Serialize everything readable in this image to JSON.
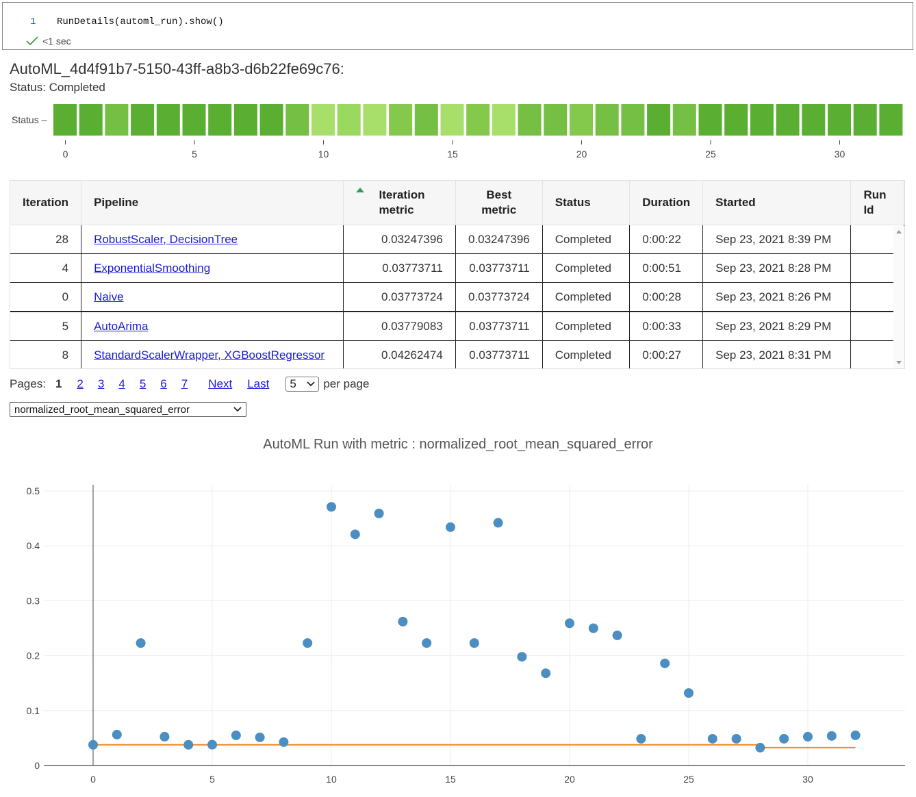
{
  "cell": {
    "line_number": "1",
    "code": "RunDetails(automl_run).show()",
    "exec_time": "<1 sec"
  },
  "run": {
    "title": "AutoML_4d4f91b7-5150-43ff-a8b3-d6b22fe69c76:",
    "status_text": "Status: Completed"
  },
  "status_strip": {
    "label": "Status",
    "colors": [
      "#5aaf32",
      "#5aaf32",
      "#74bf44",
      "#5aaf32",
      "#5aaf32",
      "#5aaf32",
      "#5aaf32",
      "#5aaf32",
      "#5aaf32",
      "#74bf44",
      "#a8df6a",
      "#9ad95f",
      "#a8df6a",
      "#84c84c",
      "#74bf44",
      "#a8df6a",
      "#84c84c",
      "#a8df6a",
      "#74bf44",
      "#74bf44",
      "#84c84c",
      "#74bf44",
      "#74bf44",
      "#5aaf32",
      "#74bf44",
      "#5aaf32",
      "#5aaf32",
      "#5aaf32",
      "#5aaf32",
      "#5aaf32",
      "#5aaf32",
      "#5aaf32",
      "#5aaf32"
    ],
    "ticks": [
      "0",
      "5",
      "10",
      "15",
      "20",
      "25",
      "30"
    ]
  },
  "table": {
    "headers": {
      "iteration": "Iteration",
      "pipeline": "Pipeline",
      "iteration_metric": "Iteration metric",
      "best_metric": "Best metric",
      "status": "Status",
      "duration": "Duration",
      "started": "Started",
      "run_id": "Run Id"
    },
    "rows": [
      {
        "iteration": "28",
        "pipeline": "RobustScaler, DecisionTree",
        "iteration_metric": "0.03247396",
        "best_metric": "0.03247396",
        "status": "Completed",
        "duration": "0:00:22",
        "started": "Sep 23, 2021 8:39 PM",
        "run_id": ""
      },
      {
        "iteration": "4",
        "pipeline": "ExponentialSmoothing",
        "iteration_metric": "0.03773711",
        "best_metric": "0.03773711",
        "status": "Completed",
        "duration": "0:00:51",
        "started": "Sep 23, 2021 8:28 PM",
        "run_id": ""
      },
      {
        "iteration": "0",
        "pipeline": "Naive",
        "iteration_metric": "0.03773724",
        "best_metric": "0.03773724",
        "status": "Completed",
        "duration": "0:00:28",
        "started": "Sep 23, 2021 8:26 PM",
        "run_id": ""
      },
      {
        "iteration": "5",
        "pipeline": "AutoArima",
        "iteration_metric": "0.03779083",
        "best_metric": "0.03773711",
        "status": "Completed",
        "duration": "0:00:33",
        "started": "Sep 23, 2021 8:29 PM",
        "run_id": ""
      },
      {
        "iteration": "8",
        "pipeline": "StandardScalerWrapper, XGBoostRegressor",
        "iteration_metric": "0.04262474",
        "best_metric": "0.03773711",
        "status": "Completed",
        "duration": "0:00:27",
        "started": "Sep 23, 2021 8:31 PM",
        "run_id": ""
      }
    ]
  },
  "pagination": {
    "label": "Pages:",
    "current": "1",
    "pages": [
      "2",
      "3",
      "4",
      "5",
      "6",
      "7"
    ],
    "next": "Next",
    "last": "Last",
    "per_page_value": "5",
    "per_page_label": "per page"
  },
  "metric_select": {
    "value": "normalized_root_mean_squared_error"
  },
  "chart_data": {
    "type": "scatter",
    "title": "AutoML Run with metric : normalized_root_mean_squared_error",
    "xlabel": "",
    "ylabel": "",
    "xlim": [
      -2,
      34
    ],
    "ylim": [
      0,
      0.5
    ],
    "x_ticks": [
      "0",
      "5",
      "10",
      "15",
      "20",
      "25",
      "30"
    ],
    "y_ticks": [
      "0",
      "0.1",
      "0.2",
      "0.3",
      "0.4",
      "0.5"
    ],
    "colors": {
      "points": "#4a8ec2",
      "best_line": "#f5861f"
    },
    "series": [
      {
        "name": "iteration metric",
        "x": [
          0,
          1,
          2,
          3,
          4,
          5,
          6,
          7,
          8,
          9,
          10,
          11,
          12,
          13,
          14,
          15,
          16,
          17,
          18,
          19,
          20,
          21,
          22,
          23,
          24,
          25,
          26,
          27,
          28,
          29,
          30,
          31,
          32
        ],
        "y": [
          0.0377,
          0.0563,
          0.223,
          0.0525,
          0.0377,
          0.0378,
          0.055,
          0.0513,
          0.0426,
          0.223,
          0.471,
          0.421,
          0.459,
          0.262,
          0.223,
          0.434,
          0.223,
          0.442,
          0.198,
          0.168,
          0.259,
          0.25,
          0.237,
          0.0487,
          0.186,
          0.132,
          0.0487,
          0.0487,
          0.0325,
          0.0487,
          0.0525,
          0.0538,
          0.055
        ]
      },
      {
        "name": "best metric",
        "x": [
          0,
          1,
          2,
          3,
          4,
          5,
          6,
          7,
          8,
          9,
          10,
          11,
          12,
          13,
          14,
          15,
          16,
          17,
          18,
          19,
          20,
          21,
          22,
          23,
          24,
          25,
          26,
          27,
          28,
          29,
          30,
          31,
          32
        ],
        "y": [
          0.0377,
          0.0377,
          0.0377,
          0.0377,
          0.0377,
          0.0377,
          0.0377,
          0.0377,
          0.0377,
          0.0377,
          0.0377,
          0.0377,
          0.0377,
          0.0377,
          0.0377,
          0.0377,
          0.0377,
          0.0377,
          0.0377,
          0.0377,
          0.0377,
          0.0377,
          0.0377,
          0.0377,
          0.0377,
          0.0377,
          0.0377,
          0.0377,
          0.0325,
          0.0325,
          0.0325,
          0.0325,
          0.0325
        ]
      }
    ]
  }
}
